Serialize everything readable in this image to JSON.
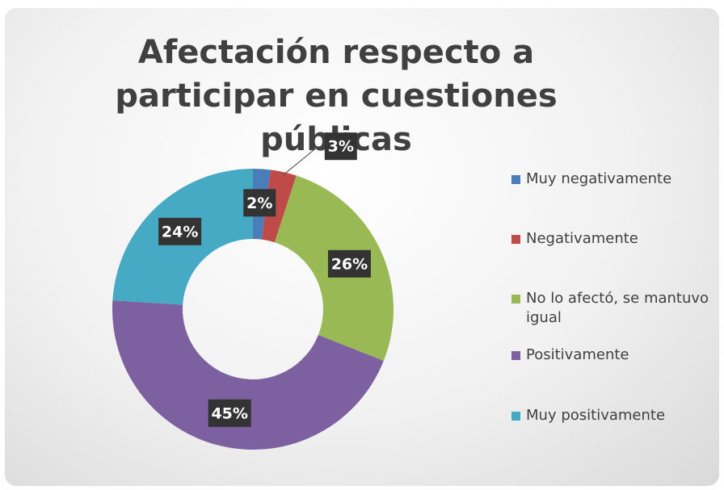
{
  "chart_data": {
    "type": "donut",
    "title": "Afectación respecto a participar en cuestiones públicas",
    "categories": [
      "Muy negativamente",
      "Negativamente",
      "No lo afectó, se mantuvo igual",
      "Positivamente",
      "Muy positivamente"
    ],
    "values": [
      2,
      3,
      26,
      45,
      24
    ],
    "value_labels": [
      "2%",
      "3%",
      "26%",
      "45%",
      "24%"
    ],
    "colors": [
      "#4a7ebb",
      "#be4b48",
      "#98b954",
      "#7d60a0",
      "#46aac5"
    ],
    "legend": "right"
  }
}
